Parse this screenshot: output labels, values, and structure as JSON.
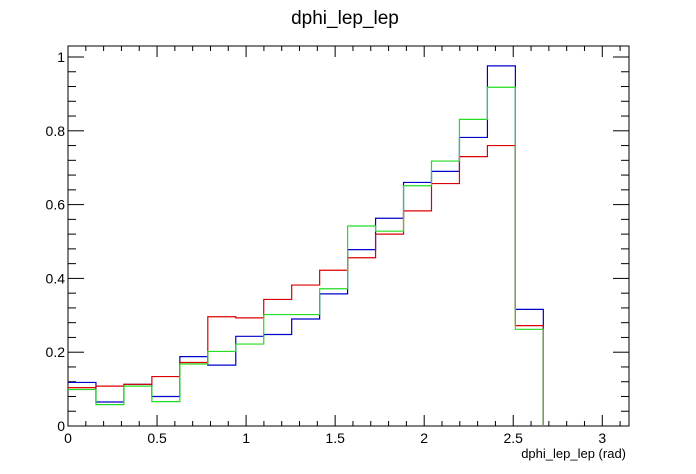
{
  "chart_data": {
    "type": "step",
    "title": "dphi_lep_lep",
    "xlabel": "dphi_lep_lep (rad)",
    "ylabel": "",
    "xlim": [
      0,
      3.15
    ],
    "ylim": [
      0,
      1.0
    ],
    "x_ticks": [
      "0",
      "0.5",
      "1",
      "1.5",
      "2",
      "2.5",
      "3"
    ],
    "x_tick_values": [
      0,
      0.5,
      1,
      1.5,
      2,
      2.5,
      3
    ],
    "y_ticks": [
      "0",
      "0.2",
      "0.4",
      "0.6",
      "0.8",
      "1"
    ],
    "y_tick_values": [
      0,
      0.2,
      0.4,
      0.6,
      0.8,
      1
    ],
    "bin_edges": [
      0,
      0.157,
      0.314,
      0.471,
      0.628,
      0.785,
      0.942,
      1.099,
      1.256,
      1.413,
      1.57,
      1.727,
      1.884,
      2.041,
      2.198,
      2.355,
      2.512,
      2.669,
      2.826,
      2.983,
      3.14
    ],
    "series": [
      {
        "color": "#0000cc",
        "values": [
          0.118,
          0.065,
          0.113,
          0.08,
          0.188,
          0.165,
          0.243,
          0.248,
          0.29,
          0.358,
          0.478,
          0.563,
          0.66,
          0.69,
          0.782,
          0.976,
          0.316,
          0,
          0,
          0
        ]
      },
      {
        "color": "#dd0000",
        "values": [
          0.104,
          0.108,
          0.113,
          0.134,
          0.172,
          0.296,
          0.293,
          0.343,
          0.382,
          0.422,
          0.456,
          0.52,
          0.583,
          0.657,
          0.73,
          0.76,
          0.272,
          0,
          0,
          0
        ]
      },
      {
        "color": "#22dd22",
        "values": [
          0.099,
          0.058,
          0.108,
          0.066,
          0.168,
          0.202,
          0.222,
          0.302,
          0.302,
          0.372,
          0.542,
          0.528,
          0.651,
          0.718,
          0.831,
          0.918,
          0.262,
          0,
          0,
          0
        ]
      }
    ]
  }
}
